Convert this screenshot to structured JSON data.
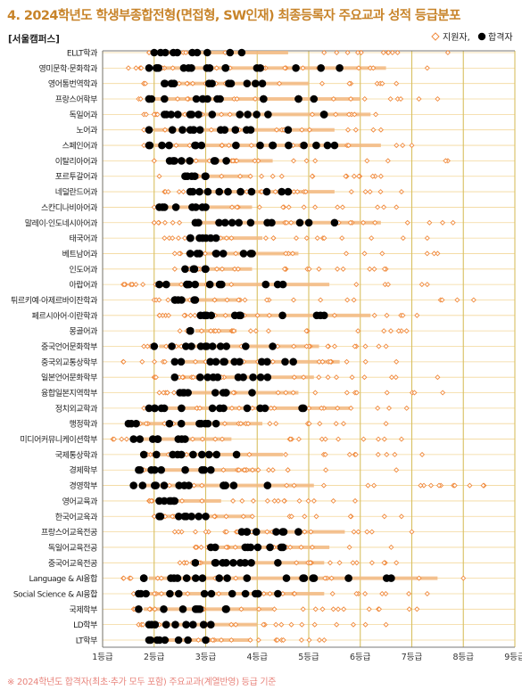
{
  "title": "4. 2024학년도 학생부종합전형(면접형, SW인재) 최종등록자 주요교과 성적 등급분포",
  "footnote": "※ 2024학년도 합격자(최초·추가 모두 포함) 주요교과(계열반영) 등급 기준",
  "chart_data": {
    "type": "scatter",
    "campus_label": "[서울캠퍼스]",
    "legend": {
      "position": "top-right",
      "applicant_label": "지원자,",
      "admitted_label": "합격자"
    },
    "colors": {
      "applicant": "#f08a3c",
      "admitted": "#000000",
      "grid": "#d8c060",
      "band": "#f2b880"
    },
    "x_ticks": [
      "1등급",
      "2등급",
      "3등급",
      "4등급",
      "5등급",
      "6등급",
      "7등급",
      "8등급",
      "9등급"
    ],
    "xlim": [
      1,
      9
    ],
    "grid": true,
    "categories": [
      "ELLT학과",
      "영미문학·문화학과",
      "영어통번역학과",
      "프랑스어학부",
      "독일어과",
      "노어과",
      "스페인어과",
      "이탈리아어과",
      "포르투갈어과",
      "네덜란드어과",
      "스칸디나비아어과",
      "말레이·인도네시아어과",
      "태국어과",
      "베트남어과",
      "인도어과",
      "아랍어과",
      "튀르키예·아제르바이잔학과",
      "페르시아어·이란학과",
      "몽골어과",
      "중국언어문화학부",
      "중국외교통상학부",
      "일본언어문화학부",
      "융합일본지역학부",
      "정치외교학과",
      "행정학과",
      "미디어커뮤니케이션학부",
      "국제통상학과",
      "경제학부",
      "경영학부",
      "영어교육과",
      "한국어교육과",
      "프랑스어교육전공",
      "독일어교육전공",
      "중국어교육전공",
      "Language & AI융합",
      "Social Science & AI융합",
      "국제학부",
      "LD학부",
      "LT학부"
    ],
    "series": [
      {
        "name": "지원자",
        "marker": "diamond-open",
        "ranges": [
          [
            1.9,
            7.7
          ],
          [
            1.5,
            7.3
          ],
          [
            1.8,
            6.7
          ],
          [
            1.7,
            7.5
          ],
          [
            1.8,
            6.3
          ],
          [
            1.8,
            6.4
          ],
          [
            1.8,
            7
          ],
          [
            2,
            7.7
          ],
          [
            2.1,
            6.4
          ],
          [
            2.2,
            6.8
          ],
          [
            2,
            6.7
          ],
          [
            2,
            7.8
          ],
          [
            2.2,
            7.3
          ],
          [
            2.4,
            7.5
          ],
          [
            2.4,
            6.5
          ],
          [
            1.4,
            7.3
          ],
          [
            2,
            8.2
          ],
          [
            2.1,
            7.1
          ],
          [
            2.5,
            6.9
          ],
          [
            1.8,
            6.5
          ],
          [
            1.4,
            6.7
          ],
          [
            2,
            7.5
          ],
          [
            2.1,
            7.6
          ],
          [
            1.8,
            6.9
          ],
          [
            1.7,
            6.5
          ],
          [
            1.2,
            6.8
          ],
          [
            1.8,
            7.2
          ],
          [
            1.8,
            6.7
          ],
          [
            1.6,
            8.4
          ],
          [
            1.9,
            5.9
          ],
          [
            2,
            6.8
          ],
          [
            2.4,
            7
          ],
          [
            2.8,
            6.6
          ],
          [
            2.5,
            6.7
          ],
          [
            1.4,
            8
          ],
          [
            1.6,
            7.3
          ],
          [
            1.6,
            7.1
          ],
          [
            1.7,
            6.5
          ],
          [
            1.9,
            5.3
          ]
        ]
      },
      {
        "name": "합격자",
        "marker": "circle-filled",
        "ranges": [
          [
            2,
            3.7
          ],
          [
            1.9,
            5.6
          ],
          [
            2.2,
            4.1
          ],
          [
            1.9,
            5.1
          ],
          [
            2.2,
            5.3
          ],
          [
            1.9,
            4.6
          ],
          [
            1.9,
            5.5
          ],
          [
            2.3,
            3.4
          ],
          [
            2.6,
            3
          ],
          [
            2.7,
            4.6
          ],
          [
            2.1,
            3
          ],
          [
            2.8,
            5.5
          ],
          [
            2.7,
            3.2
          ],
          [
            2.7,
            3.9
          ],
          [
            2.6,
            3
          ],
          [
            2.1,
            4.5
          ],
          [
            2.4,
            2.8
          ],
          [
            2.9,
            5.3
          ],
          [
            2.7,
            2.7
          ],
          [
            2,
            4.3
          ],
          [
            2.4,
            4.7
          ],
          [
            2.4,
            4.2
          ],
          [
            2.5,
            3.9
          ],
          [
            1.9,
            4.9
          ],
          [
            1.5,
            3.2
          ],
          [
            1.6,
            2.6
          ],
          [
            1.8,
            3.6
          ],
          [
            1.7,
            3.1
          ],
          [
            1.6,
            4.2
          ],
          [
            2.1,
            2.4
          ],
          [
            2.1,
            3
          ],
          [
            3.7,
            4.8
          ],
          [
            3.1,
            4.5
          ],
          [
            2.8,
            4.4
          ],
          [
            1.8,
            6.6
          ],
          [
            1.7,
            4.4
          ],
          [
            1.7,
            3.4
          ],
          [
            1.9,
            3.1
          ],
          [
            1.9,
            3
          ]
        ]
      }
    ]
  }
}
